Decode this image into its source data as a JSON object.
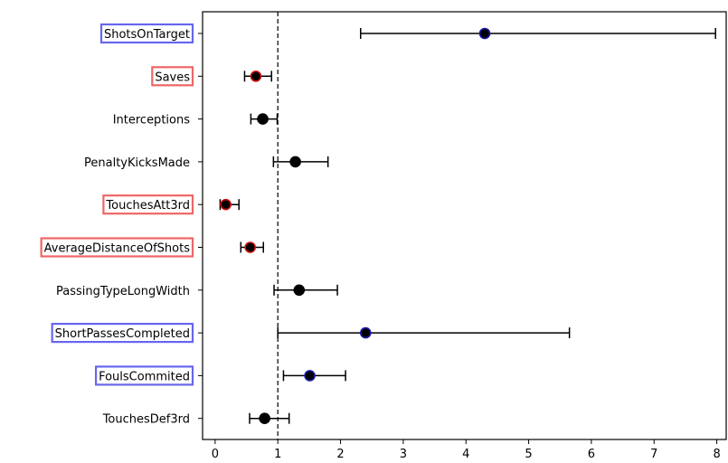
{
  "chart_data": {
    "type": "forest",
    "title": "",
    "xlabel": "",
    "ylabel": "",
    "xlim": [
      -0.2,
      8.15
    ],
    "x_ticks": [
      0,
      1,
      2,
      3,
      4,
      5,
      6,
      7,
      8
    ],
    "x_tick_labels": [
      "0",
      "1",
      "2",
      "3",
      "4",
      "5",
      "6",
      "7",
      "8"
    ],
    "reference_line": 1,
    "grid": false,
    "highlight_colors": {
      "positive": "#6666ee",
      "negative": "#ee6666",
      "neutral": "#000000"
    },
    "rows": [
      {
        "label": "ShotsOnTarget",
        "value": 4.3,
        "lower": 2.32,
        "upper": 7.98,
        "highlight": "positive"
      },
      {
        "label": "Saves",
        "value": 0.65,
        "lower": 0.47,
        "upper": 0.9,
        "highlight": "negative"
      },
      {
        "label": "Interceptions",
        "value": 0.76,
        "lower": 0.57,
        "upper": 0.99,
        "highlight": "none"
      },
      {
        "label": "PenaltyKicksMade",
        "value": 1.28,
        "lower": 0.93,
        "upper": 1.8,
        "highlight": "none"
      },
      {
        "label": "TouchesAtt3rd",
        "value": 0.17,
        "lower": 0.08,
        "upper": 0.38,
        "highlight": "negative"
      },
      {
        "label": "AverageDistanceOfShots",
        "value": 0.56,
        "lower": 0.41,
        "upper": 0.77,
        "highlight": "negative"
      },
      {
        "label": "PassingTypeLongWidth",
        "value": 1.34,
        "lower": 0.94,
        "upper": 1.95,
        "highlight": "none"
      },
      {
        "label": "ShortPassesCompleted",
        "value": 2.4,
        "lower": 1.0,
        "upper": 5.65,
        "highlight": "positive"
      },
      {
        "label": "FoulsCommited",
        "value": 1.51,
        "lower": 1.09,
        "upper": 2.08,
        "highlight": "positive"
      },
      {
        "label": "TouchesDef3rd",
        "value": 0.79,
        "lower": 0.55,
        "upper": 1.18,
        "highlight": "none"
      }
    ]
  }
}
